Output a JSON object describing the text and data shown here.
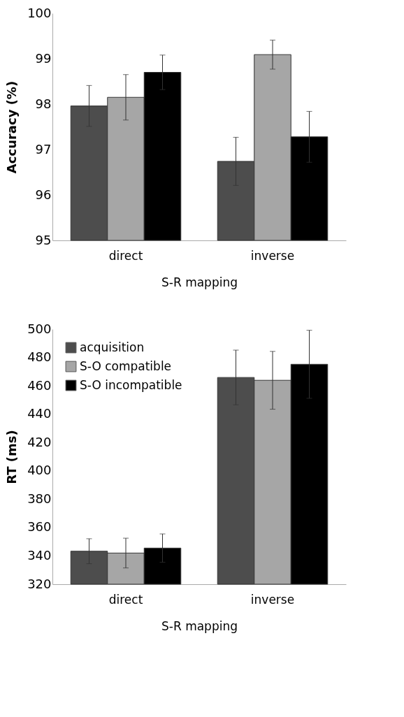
{
  "chart_data": [
    {
      "type": "bar",
      "ylabel": "Accuracy (%)",
      "xlabel": "S-R mapping",
      "categories": [
        "direct",
        "inverse"
      ],
      "ylim": [
        95,
        100
      ],
      "yticks": [
        95,
        96,
        97,
        98,
        99,
        100
      ],
      "grid": false,
      "legend": false,
      "series": [
        {
          "color": "#4d4d4d",
          "values": [
            97.96,
            96.74
          ],
          "errors": [
            0.45,
            0.53
          ]
        },
        {
          "color": "#a6a6a6",
          "values": [
            98.15,
            99.09
          ],
          "errors": [
            0.5,
            0.32
          ]
        },
        {
          "color": "#000000",
          "values": [
            98.7,
            97.28
          ],
          "errors": [
            0.38,
            0.56
          ]
        }
      ]
    },
    {
      "type": "bar",
      "ylabel": "RT (ms)",
      "xlabel": "S-R mapping",
      "categories": [
        "direct",
        "inverse"
      ],
      "ylim": [
        320,
        500
      ],
      "yticks": [
        320,
        340,
        360,
        380,
        400,
        420,
        440,
        460,
        480,
        500
      ],
      "grid": false,
      "legend": "top left",
      "series": [
        {
          "name": "acquisition",
          "color": "#4d4d4d",
          "values": [
            343.3,
            465.9
          ],
          "errors": [
            8.8,
            19.3
          ]
        },
        {
          "name": "S-O compatible",
          "color": "#a6a6a6",
          "values": [
            342.0,
            463.9
          ],
          "errors": [
            10.5,
            20.4
          ]
        },
        {
          "name": "S-O incompatible",
          "color": "#000000",
          "values": [
            345.5,
            475.2
          ],
          "errors": [
            10,
            24
          ]
        }
      ]
    }
  ]
}
